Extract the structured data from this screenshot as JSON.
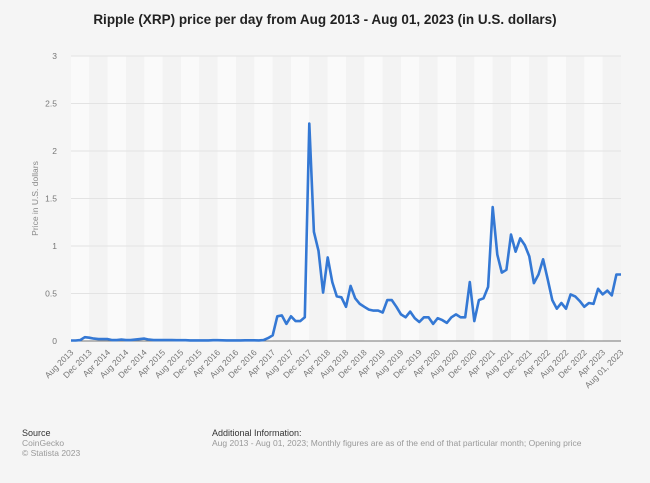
{
  "chart_data": {
    "type": "line",
    "title": "Ripple (XRP) price per day from Aug 2013 - Aug 01, 2023 (in U.S. dollars)",
    "xlabel": "",
    "ylabel": "Price in U.S. dollars",
    "ylim": [
      0,
      3
    ],
    "yticks": [
      "0",
      "0.5",
      "1",
      "1.5",
      "2",
      "2.5",
      "3"
    ],
    "grid": true,
    "line_color": "#3478d4",
    "xtick_labels": [
      "Aug 2013",
      "Dec 2013",
      "Apr 2014",
      "Aug 2014",
      "Dec 2014",
      "Apr 2015",
      "Aug 2015",
      "Dec 2015",
      "Apr 2016",
      "Aug 2016",
      "Dec 2016",
      "Apr 2017",
      "Aug 2017",
      "Dec 2017",
      "Apr 2018",
      "Aug 2018",
      "Dec 2018",
      "Apr 2019",
      "Aug 2019",
      "Dec 2019",
      "Apr 2020",
      "Aug 2020",
      "Dec 2020",
      "Apr 2021",
      "Aug 2021",
      "Dec 2021",
      "Apr 2022",
      "Aug 2022",
      "Dec 2022",
      "Apr 2023",
      "Aug 01, 2023"
    ],
    "x": [
      "Aug 2013",
      "Sep 2013",
      "Oct 2013",
      "Nov 2013",
      "Dec 2013",
      "Jan 2014",
      "Feb 2014",
      "Mar 2014",
      "Apr 2014",
      "May 2014",
      "Jun 2014",
      "Jul 2014",
      "Aug 2014",
      "Sep 2014",
      "Oct 2014",
      "Nov 2014",
      "Dec 2014",
      "Jan 2015",
      "Feb 2015",
      "Mar 2015",
      "Apr 2015",
      "May 2015",
      "Jun 2015",
      "Jul 2015",
      "Aug 2015",
      "Sep 2015",
      "Oct 2015",
      "Nov 2015",
      "Dec 2015",
      "Jan 2016",
      "Feb 2016",
      "Mar 2016",
      "Apr 2016",
      "May 2016",
      "Jun 2016",
      "Jul 2016",
      "Aug 2016",
      "Sep 2016",
      "Oct 2016",
      "Nov 2016",
      "Dec 2016",
      "Jan 2017",
      "Feb 2017",
      "Mar 2017",
      "Apr 2017",
      "May 2017",
      "Jun 2017",
      "Jul 2017",
      "Aug 2017",
      "Sep 2017",
      "Oct 2017",
      "Nov 2017",
      "Dec 2017",
      "Jan 2018",
      "Feb 2018",
      "Mar 2018",
      "Apr 2018",
      "May 2018",
      "Jun 2018",
      "Jul 2018",
      "Aug 2018",
      "Sep 2018",
      "Oct 2018",
      "Nov 2018",
      "Dec 2018",
      "Jan 2019",
      "Feb 2019",
      "Mar 2019",
      "Apr 2019",
      "May 2019",
      "Jun 2019",
      "Jul 2019",
      "Aug 2019",
      "Sep 2019",
      "Oct 2019",
      "Nov 2019",
      "Dec 2019",
      "Jan 2020",
      "Feb 2020",
      "Mar 2020",
      "Apr 2020",
      "May 2020",
      "Jun 2020",
      "Jul 2020",
      "Aug 2020",
      "Sep 2020",
      "Oct 2020",
      "Nov 2020",
      "Dec 2020",
      "Jan 2021",
      "Feb 2021",
      "Mar 2021",
      "Apr 2021",
      "May 2021",
      "Jun 2021",
      "Jul 2021",
      "Aug 2021",
      "Sep 2021",
      "Oct 2021",
      "Nov 2021",
      "Dec 2021",
      "Jan 2022",
      "Feb 2022",
      "Mar 2022",
      "Apr 2022",
      "May 2022",
      "Jun 2022",
      "Jul 2022",
      "Aug 2022",
      "Sep 2022",
      "Oct 2022",
      "Nov 2022",
      "Dec 2022",
      "Jan 2023",
      "Feb 2023",
      "Mar 2023",
      "Apr 2023",
      "May 2023",
      "Jun 2023",
      "Jul 2023",
      "Aug 01, 2023"
    ],
    "values": [
      0.005,
      0.005,
      0.01,
      0.04,
      0.035,
      0.025,
      0.02,
      0.02,
      0.02,
      0.01,
      0.01,
      0.015,
      0.01,
      0.01,
      0.015,
      0.02,
      0.025,
      0.015,
      0.01,
      0.01,
      0.01,
      0.01,
      0.01,
      0.008,
      0.008,
      0.008,
      0.006,
      0.006,
      0.006,
      0.006,
      0.006,
      0.008,
      0.008,
      0.007,
      0.006,
      0.006,
      0.006,
      0.006,
      0.007,
      0.007,
      0.007,
      0.006,
      0.01,
      0.03,
      0.06,
      0.26,
      0.27,
      0.18,
      0.26,
      0.21,
      0.21,
      0.25,
      2.29,
      1.15,
      0.95,
      0.51,
      0.88,
      0.62,
      0.47,
      0.46,
      0.36,
      0.58,
      0.45,
      0.39,
      0.36,
      0.33,
      0.32,
      0.32,
      0.3,
      0.43,
      0.43,
      0.36,
      0.28,
      0.25,
      0.31,
      0.24,
      0.2,
      0.25,
      0.25,
      0.18,
      0.24,
      0.22,
      0.19,
      0.25,
      0.28,
      0.25,
      0.25,
      0.62,
      0.21,
      0.43,
      0.45,
      0.57,
      1.41,
      0.91,
      0.72,
      0.75,
      1.12,
      0.94,
      1.08,
      1.01,
      0.89,
      0.61,
      0.7,
      0.86,
      0.65,
      0.43,
      0.34,
      0.4,
      0.34,
      0.49,
      0.47,
      0.42,
      0.36,
      0.4,
      0.39,
      0.55,
      0.49,
      0.53,
      0.48,
      0.7,
      0.7
    ]
  },
  "footer": {
    "source_heading": "Source",
    "source_name": "CoinGecko",
    "copyright": "© Statista 2023",
    "info_heading": "Additional Information:",
    "info_text": "Aug 2013 - Aug 01, 2023; Monthly figures are as of the end of that particular month; Opening price"
  }
}
